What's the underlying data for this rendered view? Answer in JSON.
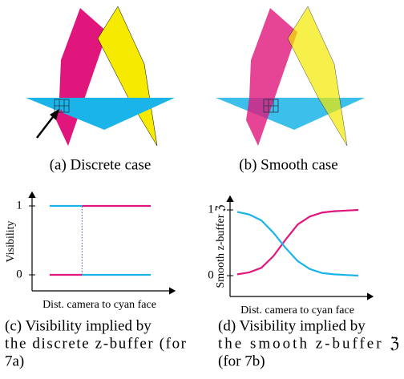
{
  "panels": [
    {
      "caption": "(a) Discrete case"
    },
    {
      "caption": "(b) Smooth case"
    },
    {
      "caption_lines": [
        "(c) Visibility implied by",
        "the discrete z-buffer (for",
        "7a)"
      ],
      "ylabel": "Visibility",
      "xlabel": "Dist. camera to cyan face",
      "ylim": [
        0,
        1
      ],
      "yticks": [
        0,
        1
      ],
      "xlim": [
        0,
        1
      ],
      "x": [
        0,
        0.32,
        0.32,
        1
      ],
      "series": [
        {
          "color": "#e0167c",
          "values": [
            0,
            0,
            1,
            1
          ]
        },
        {
          "color": "#1ab4e8",
          "values": [
            1,
            1,
            0,
            0
          ]
        }
      ]
    },
    {
      "caption_lines": [
        "(d) Visibility implied by",
        "the smooth z-buffer ℨ",
        "(for 7b)"
      ],
      "ylabel": "Smooth z-buffer ℨ",
      "xlabel": "Dist. camera to cyan face",
      "ylim": [
        0,
        1
      ],
      "yticks": [
        0,
        1
      ],
      "xlim": [
        0,
        1
      ],
      "x": [
        0,
        0.1,
        0.2,
        0.3,
        0.4,
        0.5,
        0.6,
        0.7,
        0.8,
        0.9,
        1
      ],
      "series": [
        {
          "color": "#e0167c",
          "values": [
            0.02,
            0.05,
            0.12,
            0.3,
            0.55,
            0.78,
            0.9,
            0.96,
            0.98,
            0.99,
            1.0
          ]
        },
        {
          "color": "#1ab4e8",
          "values": [
            0.97,
            0.93,
            0.84,
            0.65,
            0.42,
            0.22,
            0.1,
            0.04,
            0.02,
            0.01,
            0.0
          ]
        }
      ]
    }
  ]
}
